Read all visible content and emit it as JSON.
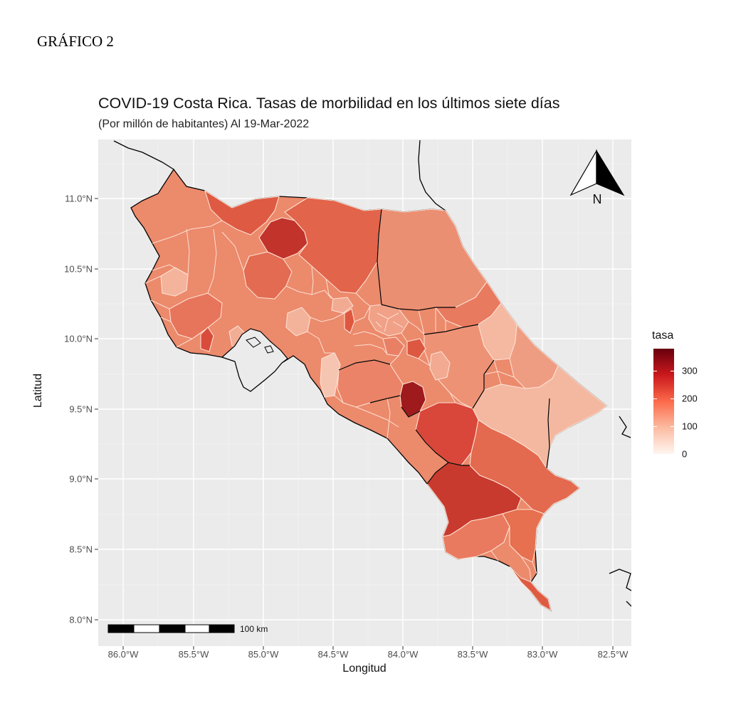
{
  "heading": "GRÁFICO 2",
  "title": "COVID-19 Costa Rica. Tasas de morbilidad en los últimos siete días",
  "subtitle": "(Por millón de habitantes) Al 19-Mar-2022",
  "axes": {
    "xlabel": "Longitud",
    "ylabel": "Latitud",
    "xticks": [
      "86.0°W",
      "85.5°W",
      "85.0°W",
      "84.5°W",
      "84.0°W",
      "83.5°W",
      "83.0°W",
      "82.5°W"
    ],
    "yticks": [
      "11.0°N",
      "10.5°N",
      "10.0°N",
      "9.5°N",
      "9.0°N",
      "8.5°N",
      "8.0°N"
    ]
  },
  "legend": {
    "title": "tasa",
    "ticks": [
      "300",
      "200",
      "100",
      "0"
    ],
    "colors": [
      "#fff5f0",
      "#fcbba1",
      "#fb6a4a",
      "#cb181d",
      "#67000d"
    ]
  },
  "scale_bar": {
    "label": "100 km"
  },
  "north_arrow": {
    "label": "N"
  },
  "colors": {
    "panel_bg": "#ebebeb",
    "grid": "#ffffff",
    "border": "#000000",
    "region_stroke": "#fde0d2"
  }
}
